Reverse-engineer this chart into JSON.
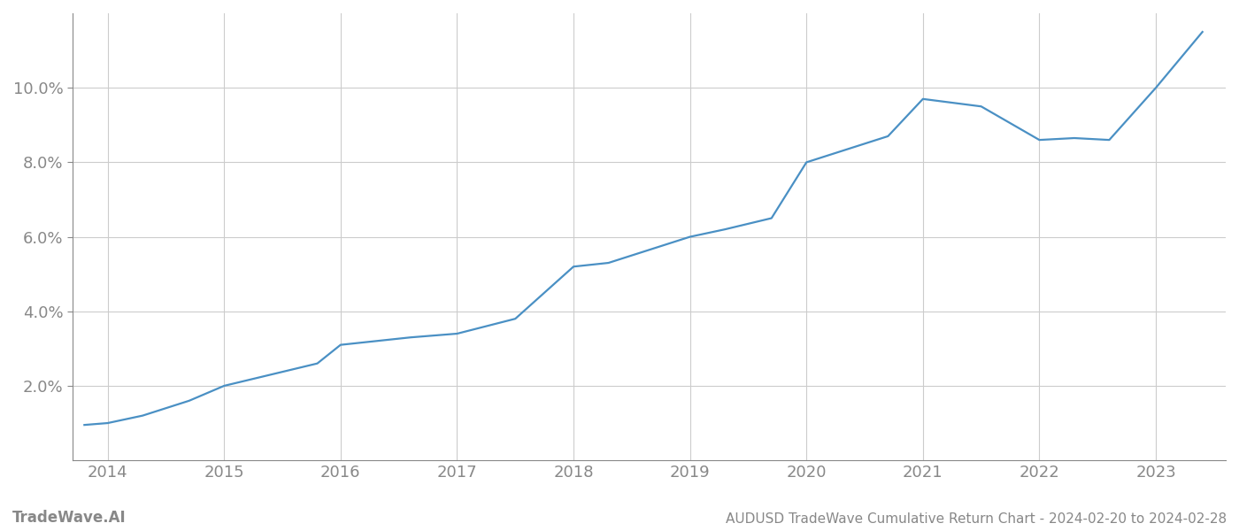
{
  "x_years": [
    2013.8,
    2014.0,
    2014.3,
    2014.7,
    2015.0,
    2015.4,
    2015.8,
    2016.0,
    2016.3,
    2016.6,
    2017.0,
    2017.5,
    2018.0,
    2018.3,
    2018.7,
    2019.0,
    2019.3,
    2019.7,
    2020.0,
    2020.3,
    2020.7,
    2021.0,
    2021.5,
    2022.0,
    2022.3,
    2022.6,
    2023.0,
    2023.4
  ],
  "y_values": [
    0.0095,
    0.01,
    0.012,
    0.016,
    0.02,
    0.023,
    0.026,
    0.031,
    0.032,
    0.033,
    0.034,
    0.038,
    0.052,
    0.053,
    0.057,
    0.06,
    0.062,
    0.065,
    0.08,
    0.083,
    0.087,
    0.097,
    0.095,
    0.086,
    0.0865,
    0.086,
    0.1,
    0.115
  ],
  "line_color": "#4a90c4",
  "line_width": 1.6,
  "background_color": "#ffffff",
  "grid_color": "#cccccc",
  "title": "AUDUSD TradeWave Cumulative Return Chart - 2024-02-20 to 2024-02-28",
  "watermark": "TradeWave.AI",
  "xlim": [
    2013.7,
    2023.6
  ],
  "ylim": [
    0.0,
    0.12
  ],
  "yticks": [
    0.02,
    0.04,
    0.06,
    0.08,
    0.1
  ],
  "xticks": [
    2014,
    2015,
    2016,
    2017,
    2018,
    2019,
    2020,
    2021,
    2022,
    2023
  ],
  "tick_color": "#888888",
  "title_fontsize": 11,
  "watermark_fontsize": 12,
  "tick_fontsize": 13
}
